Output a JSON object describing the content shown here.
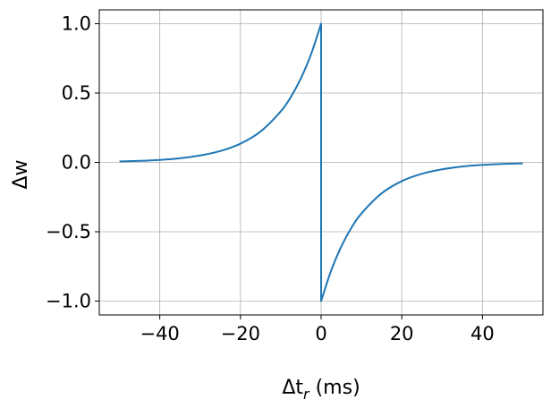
{
  "chart_data": {
    "type": "line",
    "xlabel_main": "Δt",
    "xlabel_sub": "r",
    "xlabel_unit": " (ms)",
    "ylabel_main": "Δw",
    "xlim": [
      -55,
      55
    ],
    "ylim": [
      -1.1,
      1.1
    ],
    "xticks": [
      -40,
      -20,
      0,
      20,
      40
    ],
    "xtick_labels": [
      "−40",
      "−20",
      "0",
      "20",
      "40"
    ],
    "yticks": [
      -1.0,
      -0.5,
      0.0,
      0.5,
      1.0
    ],
    "ytick_labels": [
      "−1.0",
      "−0.5",
      "0.0",
      "0.5",
      "1.0"
    ],
    "grid": true,
    "series": [
      {
        "color": "#1f77b4",
        "x": [
          -50,
          -45,
          -40,
          -35,
          -30,
          -25,
          -20,
          -15,
          -10,
          -7.5,
          -5,
          -2.5,
          0,
          0,
          2.5,
          5,
          7.5,
          10,
          15,
          20,
          25,
          30,
          35,
          40,
          45,
          50
        ],
        "y": [
          0.007,
          0.011,
          0.018,
          0.03,
          0.05,
          0.082,
          0.135,
          0.223,
          0.368,
          0.472,
          0.607,
          0.779,
          1.0,
          -1.0,
          -0.779,
          -0.607,
          -0.472,
          -0.368,
          -0.223,
          -0.135,
          -0.082,
          -0.05,
          -0.03,
          -0.018,
          -0.011,
          -0.007
        ]
      }
    ]
  }
}
